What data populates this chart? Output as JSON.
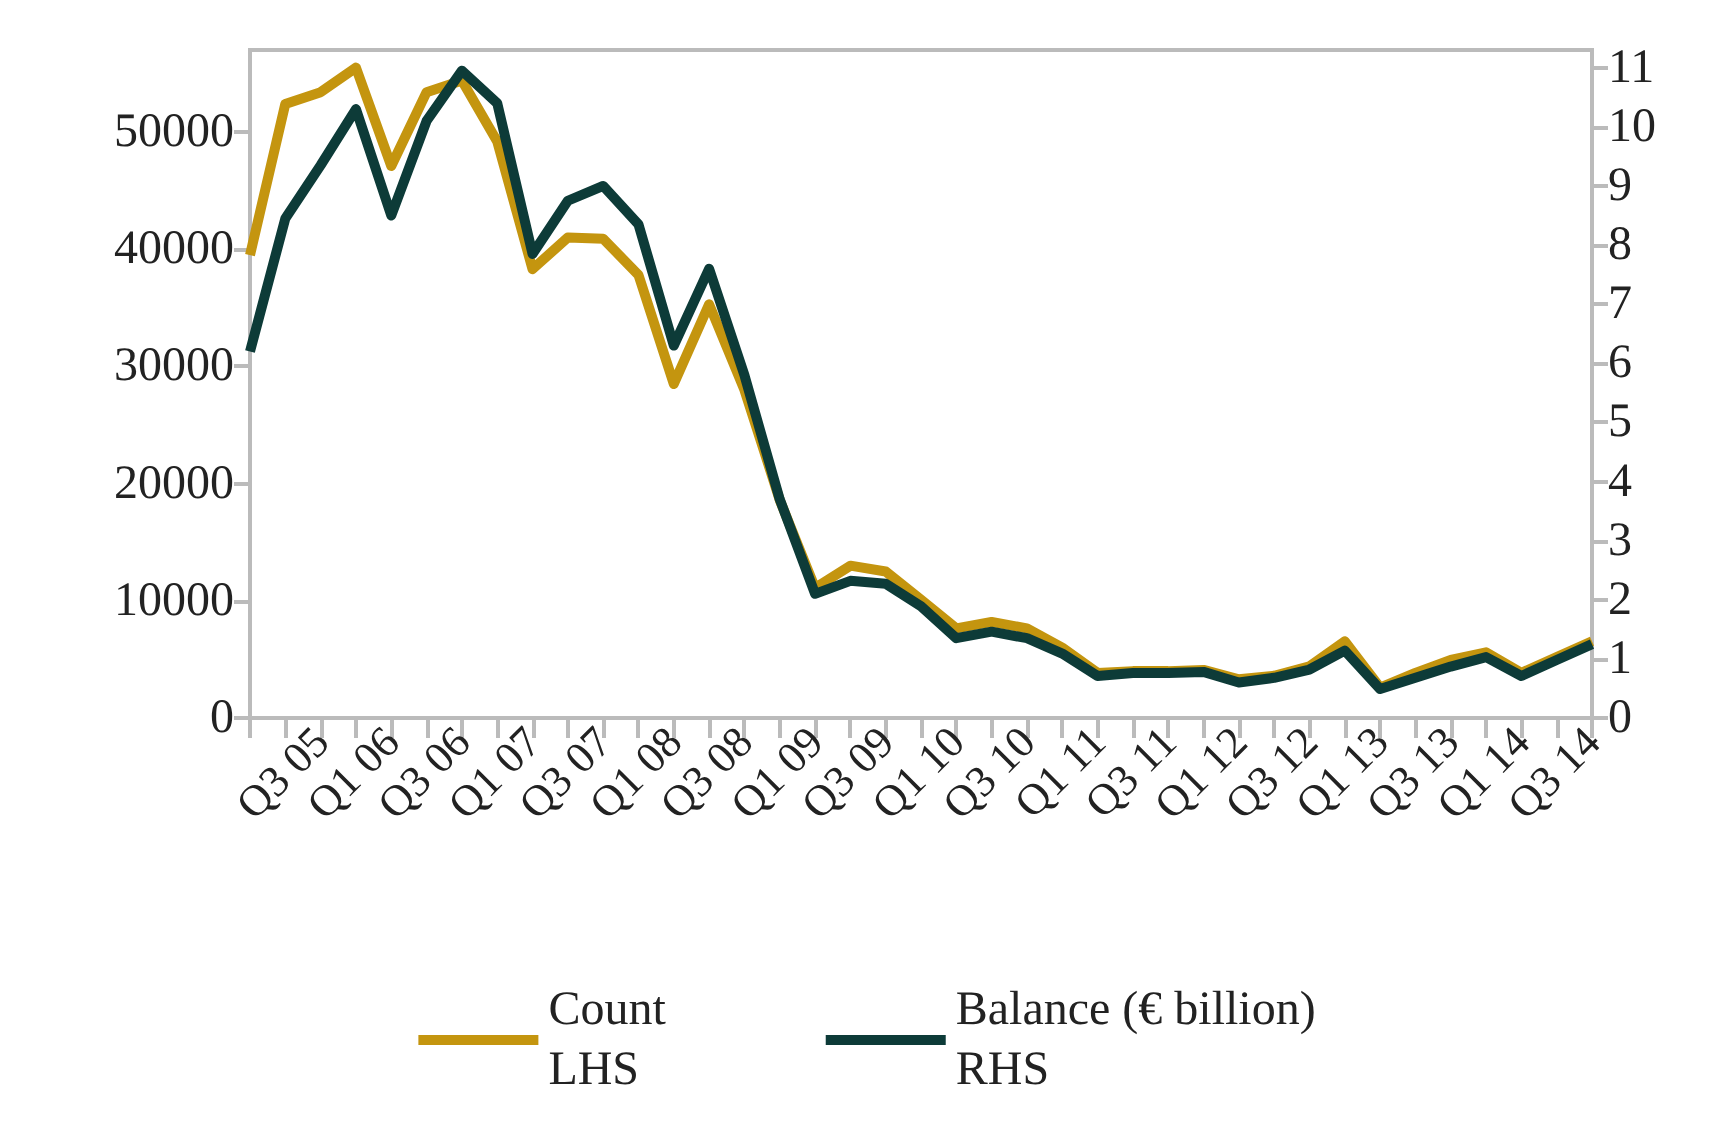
{
  "chart_data": {
    "type": "line",
    "categories": [
      null,
      null,
      "Q3 05",
      null,
      "Q1 06",
      null,
      "Q3 06",
      null,
      "Q1 07",
      null,
      "Q3 07",
      null,
      "Q1 08",
      null,
      "Q3 08",
      null,
      "Q1 09",
      null,
      "Q3 09",
      null,
      "Q1 10",
      null,
      "Q3 10",
      null,
      "Q1 11",
      null,
      "Q3 11",
      null,
      "Q1 12",
      null,
      "Q3 12",
      null,
      "Q1 13",
      null,
      "Q3 13",
      null,
      "Q1 14",
      null,
      "Q3 14"
    ],
    "series": [
      {
        "name": "Count\nLHS",
        "color": "#c4950f",
        "values": [
          39500,
          52400,
          53400,
          55500,
          47100,
          53400,
          54400,
          49200,
          38300,
          41000,
          40900,
          37800,
          28500,
          35300,
          28000,
          18600,
          11100,
          13000,
          12500,
          10100,
          7650,
          8200,
          7650,
          6000,
          3850,
          4000,
          4000,
          4100,
          3300,
          3600,
          4400,
          6550,
          2600,
          3850,
          4950,
          5600,
          3850,
          5200,
          6550
        ]
      },
      {
        "name": "Balance (€ billion)\nRHS",
        "color": "#0d3b38",
        "axis": "y2",
        "values": [
          6.2,
          8.45,
          9.35,
          10.3,
          8.5,
          10.1,
          10.95,
          10.4,
          7.85,
          8.75,
          9.0,
          8.35,
          6.3,
          7.6,
          5.8,
          3.7,
          2.1,
          2.32,
          2.27,
          1.89,
          1.35,
          1.46,
          1.35,
          1.09,
          0.71,
          0.76,
          0.76,
          0.78,
          0.6,
          0.68,
          0.82,
          1.14,
          0.49,
          0.68,
          0.87,
          1.03,
          0.71,
          0.98,
          1.25
        ]
      }
    ],
    "ylim": [
      0,
      57000
    ],
    "yticks": [
      0,
      10000,
      20000,
      30000,
      40000,
      50000
    ],
    "y2lim": [
      0,
      11.3
    ],
    "y2ticks": [
      0,
      1,
      2,
      3,
      4,
      5,
      6,
      7,
      8,
      9,
      10,
      11
    ],
    "grid": false,
    "legend": "bottom",
    "marker": "none",
    "line_style": "solid"
  }
}
